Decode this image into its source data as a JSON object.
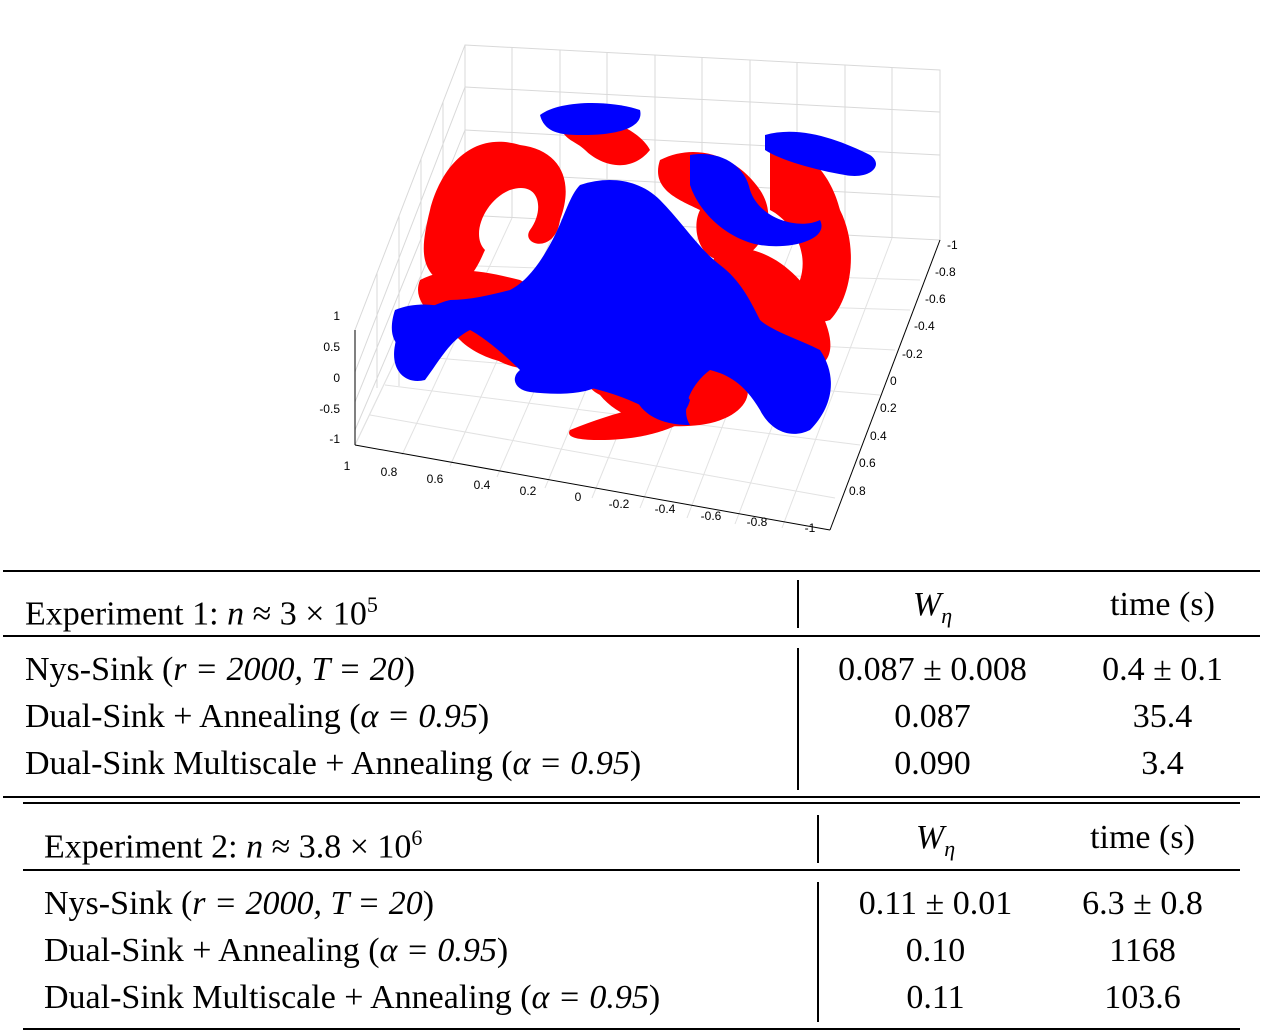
{
  "plot": {
    "z_ticks": [
      "1",
      "0.5",
      "0",
      "-0.5",
      "-1"
    ],
    "x_ticks": [
      "1",
      "0.8",
      "0.6",
      "0.4",
      "0.2",
      "0",
      "-0.2",
      "-0.4",
      "-0.6",
      "-0.8",
      "-1"
    ],
    "y_ticks": [
      "-1",
      "-0.8",
      "-0.6",
      "-0.4",
      "-0.2",
      "0",
      "0.2",
      "0.4",
      "0.6",
      "0.8"
    ],
    "colors": {
      "red": "#ff0000",
      "blue": "#0000ff"
    }
  },
  "tables": [
    {
      "header": {
        "label": "Experiment 1: ",
        "var": "n",
        "rel": " ≈ 3 × 10",
        "exp": "5",
        "col_w": "W",
        "col_w_sub": "η",
        "col_time": "time (s)"
      },
      "rows": [
        {
          "method": "Nys-Sink (",
          "params": "r = 2000, T = 20",
          "close": ")",
          "w": "0.087 ± 0.008",
          "time": "0.4 ± 0.1"
        },
        {
          "method": "Dual-Sink + Annealing (",
          "params": "α = 0.95",
          "close": ")",
          "w": "0.087",
          "time": "35.4"
        },
        {
          "method": "Dual-Sink Multiscale + Annealing (",
          "params": "α = 0.95",
          "close": ")",
          "w": "0.090",
          "time": "3.4"
        }
      ]
    },
    {
      "header": {
        "label": "Experiment 2: ",
        "var": "n",
        "rel": " ≈ 3.8 × 10",
        "exp": "6",
        "col_w": "W",
        "col_w_sub": "η",
        "col_time": "time (s)"
      },
      "rows": [
        {
          "method": "Nys-Sink (",
          "params": "r = 2000, T = 20",
          "close": ")",
          "w": "0.11 ± 0.01",
          "time": "6.3 ± 0.8"
        },
        {
          "method": "Dual-Sink + Annealing (",
          "params": "α = 0.95",
          "close": ")",
          "w": "0.10",
          "time": "1168"
        },
        {
          "method": "Dual-Sink Multiscale + Annealing (",
          "params": "α = 0.95",
          "close": ")",
          "w": "0.11",
          "time": "103.6"
        }
      ]
    }
  ]
}
